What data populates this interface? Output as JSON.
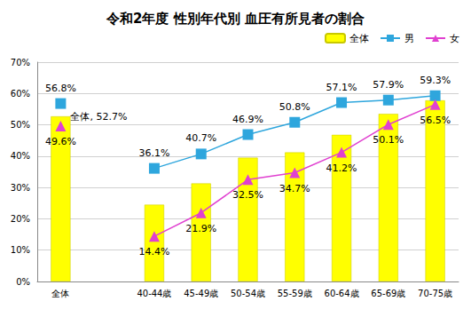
{
  "chart_data": {
    "type": "bar",
    "title": "令和2年度 性別年代別 血圧有所見者の割合",
    "categories": [
      "全体",
      null,
      "40-44歳",
      "45-49歳",
      "50-54歳",
      "55-59歳",
      "60-64歳",
      "65-69歳",
      "70-75歳"
    ],
    "series": [
      {
        "name": "全体",
        "type": "bar",
        "color": "#ffff00",
        "values": [
          52.7,
          null,
          24.5,
          31.3,
          39.5,
          41.2,
          46.8,
          53.5,
          57.8
        ],
        "value_labels": [
          "全体, 52.7%",
          null,
          null,
          null,
          null,
          null,
          null,
          null,
          null
        ]
      },
      {
        "name": "男",
        "type": "line",
        "color": "#2ea6dd",
        "marker": "square",
        "line_style": "solid",
        "values": [
          56.8,
          null,
          36.1,
          40.7,
          46.9,
          50.8,
          57.1,
          57.9,
          59.3
        ],
        "value_labels": [
          "56.8%",
          null,
          "36.1%",
          "40.7%",
          "46.9%",
          "50.8%",
          "57.1%",
          "57.9%",
          "59.3%"
        ]
      },
      {
        "name": "女",
        "type": "line",
        "color": "#e040d0",
        "marker": "triangle",
        "line_style": "solid",
        "values": [
          49.6,
          null,
          14.4,
          21.9,
          32.5,
          34.7,
          41.2,
          50.1,
          56.5
        ],
        "value_labels": [
          "49.6%",
          null,
          "14.4%",
          "21.9%",
          "32.5%",
          "34.7%",
          "41.2%",
          "50.1%",
          "56.5%"
        ]
      }
    ],
    "ylim": [
      0,
      70
    ],
    "yticks": [
      {
        "value": 0,
        "label": "0%"
      },
      {
        "value": 10,
        "label": "10%"
      },
      {
        "value": 20,
        "label": "20%"
      },
      {
        "value": 30,
        "label": "30%"
      },
      {
        "value": 40,
        "label": "40%"
      },
      {
        "value": 50,
        "label": "50%"
      },
      {
        "value": 60,
        "label": "60%"
      },
      {
        "value": 70,
        "label": "70%"
      }
    ],
    "grid": true,
    "legend": "top-right",
    "data_labels": true
  }
}
